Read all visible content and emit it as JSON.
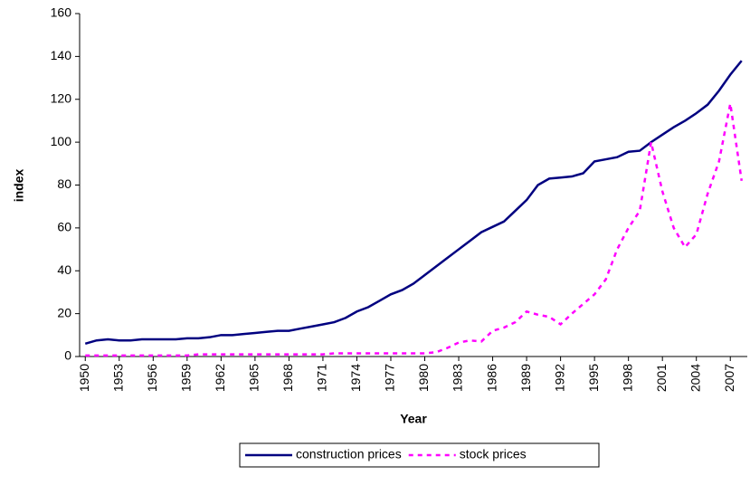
{
  "chart_data": {
    "type": "line",
    "x_label": "Year",
    "y_label": "index",
    "x": [
      1950,
      1951,
      1952,
      1953,
      1954,
      1955,
      1956,
      1957,
      1958,
      1959,
      1960,
      1961,
      1962,
      1963,
      1964,
      1965,
      1966,
      1967,
      1968,
      1969,
      1970,
      1971,
      1972,
      1973,
      1974,
      1975,
      1976,
      1977,
      1978,
      1979,
      1980,
      1981,
      1982,
      1983,
      1984,
      1985,
      1986,
      1987,
      1988,
      1989,
      1990,
      1991,
      1992,
      1993,
      1994,
      1995,
      1996,
      1997,
      1998,
      1999,
      2000,
      2001,
      2002,
      2003,
      2004,
      2005,
      2006,
      2007,
      2008
    ],
    "series": [
      {
        "name": "construction prices",
        "color": "#000080",
        "dashed": false,
        "values": [
          6,
          7.5,
          8,
          7.5,
          7.5,
          8,
          8,
          8,
          8,
          8.5,
          8.5,
          9,
          10,
          10,
          10.5,
          11,
          11.5,
          12,
          12,
          13,
          14,
          15,
          16,
          18,
          21,
          23,
          26,
          29,
          31,
          34,
          38,
          42,
          46,
          50,
          54,
          58,
          60.5,
          63,
          68,
          73,
          80,
          83,
          83.5,
          84,
          85.5,
          91,
          92,
          93,
          95.5,
          96,
          100,
          103.5,
          107,
          110,
          113.5,
          117.5,
          124,
          131.5,
          138
        ]
      },
      {
        "name": "stock prices",
        "color": "#ff00ff",
        "dashed": true,
        "values": [
          0.5,
          0.5,
          0.5,
          0.5,
          0.5,
          0.5,
          0.5,
          0.5,
          0.5,
          0.5,
          1,
          1,
          1,
          1,
          1,
          1,
          1,
          1,
          1,
          1,
          1,
          1,
          1.5,
          1.5,
          1.5,
          1.5,
          1.5,
          1.5,
          1.5,
          1.5,
          1.5,
          2,
          4,
          6.5,
          7.5,
          7,
          12,
          13.5,
          16,
          21,
          19.5,
          18.5,
          15,
          20,
          24.5,
          29,
          36,
          50,
          60,
          68,
          100,
          77,
          60,
          51,
          57,
          76,
          91,
          118,
          82
        ]
      }
    ],
    "xlim": [
      1949.5,
      2008.5
    ],
    "xticks": [
      1950,
      1953,
      1956,
      1959,
      1962,
      1965,
      1968,
      1971,
      1974,
      1977,
      1980,
      1983,
      1986,
      1989,
      1992,
      1995,
      1998,
      2001,
      2004,
      2007
    ],
    "ylim": [
      0,
      160
    ],
    "yticks": [
      0,
      20,
      40,
      60,
      80,
      100,
      120,
      140,
      160
    ],
    "grid": false,
    "legend": "bottom"
  }
}
